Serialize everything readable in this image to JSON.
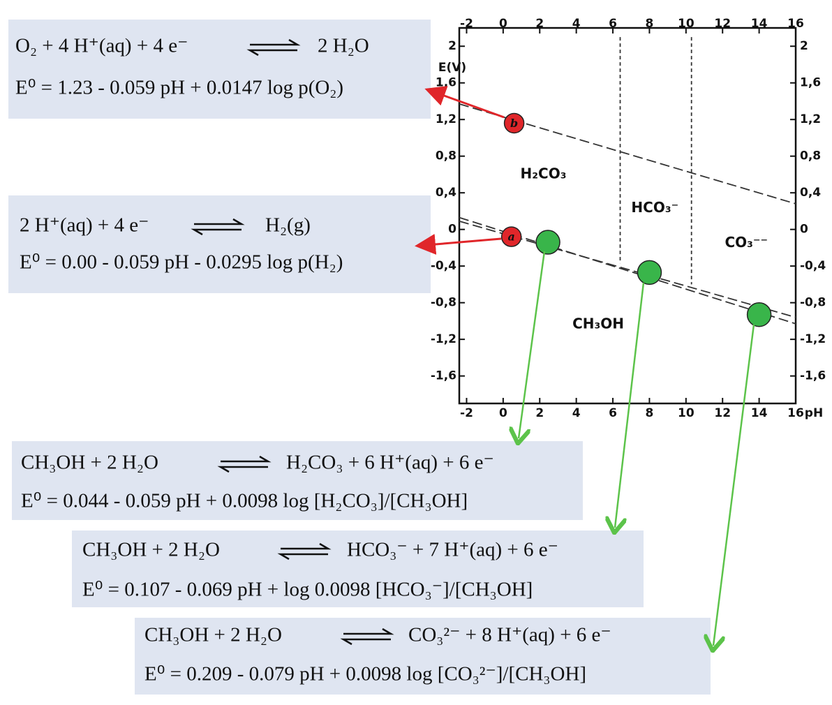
{
  "chart_data": {
    "type": "line",
    "x_label": "pH",
    "y_label": "E(V)",
    "xlim": [
      -2.4,
      16
    ],
    "ylim": [
      -1.9,
      2.2
    ],
    "xticks": [
      -2,
      0,
      2,
      4,
      6,
      8,
      10,
      12,
      14,
      16
    ],
    "yticks": [
      2,
      {
        "value": 1.6,
        "label": "1,6"
      },
      {
        "value": 1.2,
        "label": "1,2"
      },
      {
        "value": 0.8,
        "label": "0,8"
      },
      {
        "value": 0.4,
        "label": "0,4"
      },
      0,
      {
        "value": -0.4,
        "label": "-0,4"
      },
      {
        "value": -0.8,
        "label": "-0,8"
      },
      {
        "value": -1.2,
        "label": "-1,2"
      },
      {
        "value": -1.6,
        "label": "-1,6"
      }
    ],
    "series": [
      {
        "color": "#333333",
        "dash": "long",
        "x": [
          -2.4,
          16
        ],
        "values": [
          1.37,
          0.28
        ]
      },
      {
        "color": "#333333",
        "dash": "long",
        "x": [
          -2.4,
          16
        ],
        "values": [
          0.09,
          -0.96
        ]
      },
      {
        "color": "#333333",
        "dash": "long",
        "x": [
          -2.4,
          16
        ],
        "values": [
          0.13,
          -1.03
        ]
      },
      {
        "color": "#333333",
        "dash": "short",
        "x": [
          6.4,
          6.4
        ],
        "values": [
          2.1,
          -0.37
        ]
      },
      {
        "color": "#333333",
        "dash": "short",
        "x": [
          10.3,
          10.3
        ],
        "values": [
          2.1,
          -0.6
        ]
      }
    ],
    "regions": [
      {
        "text": "H₂CO₃",
        "x": 2.2,
        "y": 0.6
      },
      {
        "text": "HCO₃⁻",
        "x": 8.3,
        "y": 0.23
      },
      {
        "text": "CO₃⁻⁻",
        "x": 13.3,
        "y": -0.15
      },
      {
        "text": "CH₃OH",
        "x": 5.2,
        "y": -1.04
      }
    ],
    "points": [
      {
        "label": "b",
        "x": 0.6,
        "y": 1.16,
        "color": "#e0262a"
      },
      {
        "label": "a",
        "x": 0.45,
        "y": -0.08,
        "color": "#e0262a"
      },
      {
        "x": 2.45,
        "y": -0.14,
        "color": "#39b54a"
      },
      {
        "x": 8.0,
        "y": -0.47,
        "color": "#39b54a"
      },
      {
        "x": 14.0,
        "y": -0.93,
        "color": "#39b54a"
      }
    ]
  },
  "equations": [
    {
      "left": "O₂ + 4 H⁺(aq)  + 4 e⁻",
      "right": "2 H₂O",
      "formula": "E⁰ = 1.23 - 0.059 pH + 0.0147 log p(O₂)"
    },
    {
      "left": "2 H⁺(aq) + 4 e⁻",
      "right": "H₂(g)",
      "formula": "E⁰ = 0.00 - 0.059 pH - 0.0295 log p(H₂)"
    },
    {
      "left": "CH₃OH  +  2 H₂O",
      "right": "H₂CO₃ + 6 H⁺(aq) + 6 e⁻",
      "formula": "E⁰ = 0.044 - 0.059 pH + 0.0098 log [H₂CO₃]/[CH₃OH]"
    },
    {
      "left": "CH₃OH  +  2 H₂O",
      "right": "HCO₃⁻ + 7 H⁺(aq) + 6 e⁻",
      "formula": "E⁰ = 0.107 - 0.069 pH + log 0.0098 [HCO₃⁻]/[CH₃OH]"
    },
    {
      "left": "CH₃OH  +  2 H₂O",
      "right": "CO₃²⁻ + 8 H⁺(aq) + 6 e⁻",
      "formula": "E⁰ = 0.209 - 0.079 pH + 0.0098 log [CO₃²⁻]/[CH₃OH]"
    }
  ]
}
